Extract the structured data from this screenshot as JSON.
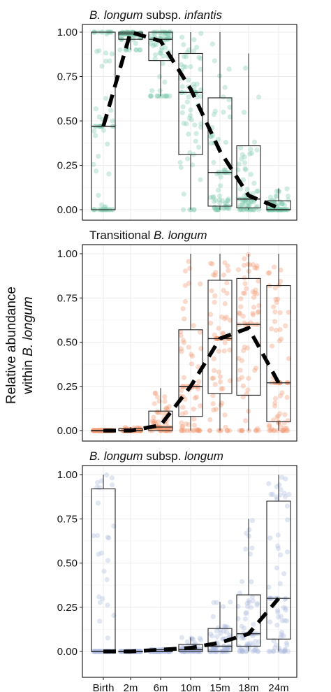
{
  "chart_data": [
    {
      "type": "box",
      "title": "B. longum subsp. infantis",
      "title_parts": [
        {
          "text": "B. longum",
          "italic": true
        },
        {
          "text": " subsp. ",
          "italic": false
        },
        {
          "text": "infantis",
          "italic": true
        }
      ],
      "categories": [
        "Birth",
        "2m",
        "6m",
        "10m",
        "15m",
        "18m",
        "24m"
      ],
      "ylim": [
        0,
        1
      ],
      "yticks": [
        "0.00",
        "0.25",
        "0.50",
        "0.75",
        "1.00"
      ],
      "point_color": "#7cc8ad",
      "boxes": [
        {
          "q1": 0.0,
          "median": 0.47,
          "q3": 1.0,
          "whisker_low": 0.0,
          "whisker_high": 1.0
        },
        {
          "q1": 0.96,
          "median": 0.99,
          "q3": 1.0,
          "whisker_low": 0.9,
          "whisker_high": 1.0
        },
        {
          "q1": 0.84,
          "median": 0.96,
          "q3": 1.0,
          "whisker_low": 0.64,
          "whisker_high": 1.0
        },
        {
          "q1": 0.31,
          "median": 0.66,
          "q3": 0.88,
          "whisker_low": 0.0,
          "whisker_high": 1.0
        },
        {
          "q1": 0.02,
          "median": 0.21,
          "q3": 0.63,
          "whisker_low": 0.0,
          "whisker_high": 1.0
        },
        {
          "q1": 0.01,
          "median": 0.06,
          "q3": 0.36,
          "whisker_low": 0.0,
          "whisker_high": 0.88
        },
        {
          "q1": 0.0,
          "median": 0.0,
          "q3": 0.05,
          "whisker_low": 0.0,
          "whisker_high": 0.12
        }
      ],
      "mean_line": [
        0.47,
        1.0,
        0.95,
        0.68,
        0.33,
        0.08,
        0.01
      ]
    },
    {
      "type": "box",
      "title": "Transitional B. longum",
      "title_parts": [
        {
          "text": "Transitional ",
          "italic": false
        },
        {
          "text": "B. longum",
          "italic": true
        }
      ],
      "categories": [
        "Birth",
        "2m",
        "6m",
        "10m",
        "15m",
        "18m",
        "24m"
      ],
      "ylim": [
        0,
        1
      ],
      "yticks": [
        "0.00",
        "0.25",
        "0.50",
        "0.75",
        "1.00"
      ],
      "point_color": "#f0956e",
      "boxes": [
        {
          "q1": 0.0,
          "median": 0.0,
          "q3": 0.0,
          "whisker_low": 0.0,
          "whisker_high": 0.0
        },
        {
          "q1": 0.0,
          "median": 0.0,
          "q3": 0.01,
          "whisker_low": 0.0,
          "whisker_high": 0.02
        },
        {
          "q1": 0.0,
          "median": 0.02,
          "q3": 0.11,
          "whisker_low": 0.0,
          "whisker_high": 0.24
        },
        {
          "q1": 0.08,
          "median": 0.25,
          "q3": 0.57,
          "whisker_low": 0.0,
          "whisker_high": 1.0
        },
        {
          "q1": 0.21,
          "median": 0.52,
          "q3": 0.85,
          "whisker_low": 0.0,
          "whisker_high": 1.0
        },
        {
          "q1": 0.2,
          "median": 0.6,
          "q3": 0.86,
          "whisker_low": 0.0,
          "whisker_high": 1.0
        },
        {
          "q1": 0.05,
          "median": 0.27,
          "q3": 0.82,
          "whisker_low": 0.0,
          "whisker_high": 1.0
        }
      ],
      "mean_line": [
        0.0,
        0.0,
        0.03,
        0.25,
        0.52,
        0.58,
        0.27
      ]
    },
    {
      "type": "box",
      "title": "B. longum subsp. longum",
      "title_parts": [
        {
          "text": "B. longum",
          "italic": true
        },
        {
          "text": " subsp. ",
          "italic": false
        },
        {
          "text": "longum",
          "italic": true
        }
      ],
      "categories": [
        "Birth",
        "2m",
        "6m",
        "10m",
        "15m",
        "18m",
        "24m"
      ],
      "ylim": [
        0,
        1
      ],
      "yticks": [
        "0.00",
        "0.25",
        "0.50",
        "0.75",
        "1.00"
      ],
      "point_color": "#aab6dc",
      "boxes": [
        {
          "q1": 0.0,
          "median": 0.0,
          "q3": 0.92,
          "whisker_low": 0.0,
          "whisker_high": 1.0
        },
        {
          "q1": 0.0,
          "median": 0.0,
          "q3": 0.0,
          "whisker_low": 0.0,
          "whisker_high": 0.0
        },
        {
          "q1": 0.0,
          "median": 0.0,
          "q3": 0.01,
          "whisker_low": 0.0,
          "whisker_high": 0.01
        },
        {
          "q1": 0.0,
          "median": 0.01,
          "q3": 0.04,
          "whisker_low": 0.0,
          "whisker_high": 0.08
        },
        {
          "q1": 0.0,
          "median": 0.03,
          "q3": 0.13,
          "whisker_low": 0.0,
          "whisker_high": 0.28
        },
        {
          "q1": 0.03,
          "median": 0.1,
          "q3": 0.32,
          "whisker_low": 0.0,
          "whisker_high": 0.75
        },
        {
          "q1": 0.07,
          "median": 0.3,
          "q3": 0.85,
          "whisker_low": 0.0,
          "whisker_high": 1.0
        }
      ],
      "mean_line": [
        0.0,
        0.0,
        0.01,
        0.02,
        0.05,
        0.1,
        0.3
      ]
    }
  ],
  "y_axis_title": {
    "line1": "Relative abundance",
    "line2_prefix": "within ",
    "line2_italic": "B. longum"
  }
}
